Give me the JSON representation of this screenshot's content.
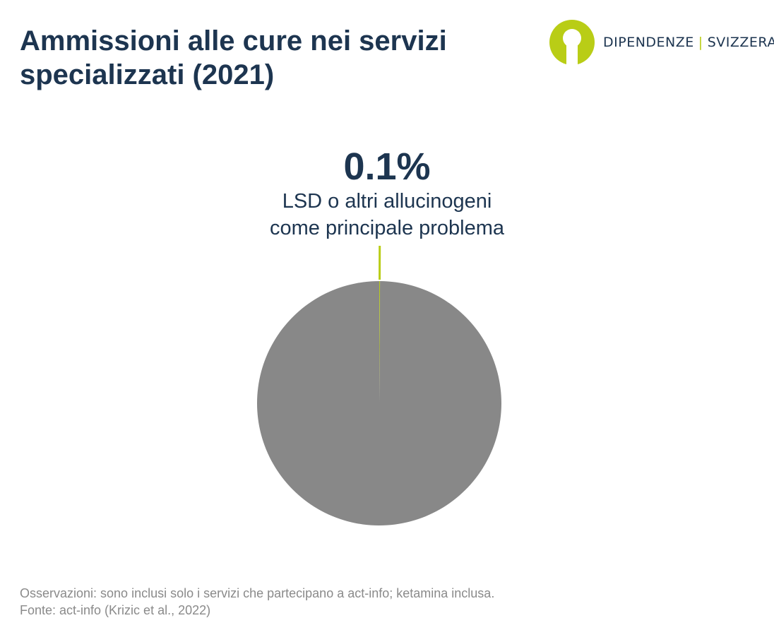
{
  "title": "Ammissioni alle cure nei servizi specializzati (2021)",
  "logo": {
    "left_text": "DIPENDENZE",
    "separator": "|",
    "right_text": "SVIZZERA",
    "mark_icon": "person-icon"
  },
  "colors": {
    "title": "#1d3550",
    "accent": "#b9cd16",
    "pie_rest": "#888888",
    "footer": "#8a8a8a"
  },
  "chart_data": {
    "type": "pie",
    "highlight_value_label": "0.1%",
    "highlight_label_lines": [
      "LSD o altri allucinogeni",
      "come principale problema"
    ],
    "slices": [
      {
        "value": 0.1,
        "color": "#b9cd16"
      },
      {
        "value": 99.9,
        "color": "#888888"
      }
    ]
  },
  "footer": {
    "note": "Osservazioni: sono inclusi solo i servizi che partecipano a act-info; ketamina inclusa.",
    "source": "Fonte: act-info (Krizic et al., 2022)"
  }
}
